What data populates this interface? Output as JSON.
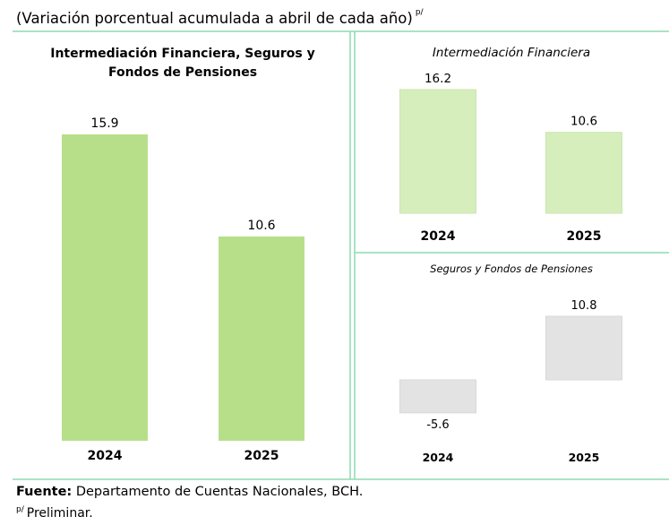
{
  "header": {
    "subtitle": "(Variación porcentual acumulada a abril de cada año)",
    "superscript": "p/"
  },
  "footer": {
    "source_label": "Fuente:",
    "source_text": "Departamento de Cuentas Nacionales, BCH.",
    "note_marker": "p/",
    "note_text": "Preliminar."
  },
  "colors": {
    "frame": "#8fd9b4",
    "bar_green_dark": "#b7df8a",
    "bar_green_light": "#d5eebc",
    "bar_gray": "#e3e3e3"
  },
  "chart_data": [
    {
      "type": "bar",
      "title": "Intermediación Financiera, Seguros y Fondos de Pensiones",
      "categories": [
        "2024",
        "2025"
      ],
      "values": [
        15.9,
        10.6
      ],
      "value_labels": [
        "15.9",
        "10.6"
      ],
      "color": "#b7df8a"
    },
    {
      "type": "bar",
      "title": "Intermediación Financiera",
      "categories": [
        "2024",
        "2025"
      ],
      "values": [
        16.2,
        10.6
      ],
      "value_labels": [
        "16.2",
        "10.6"
      ],
      "color": "#d5eebc"
    },
    {
      "type": "bar",
      "title": "Seguros y Fondos de Pensiones",
      "categories": [
        "2024",
        "2025"
      ],
      "values": [
        -5.6,
        10.8
      ],
      "value_labels": [
        "-5.6",
        "10.8"
      ],
      "color": "#e3e3e3"
    }
  ]
}
